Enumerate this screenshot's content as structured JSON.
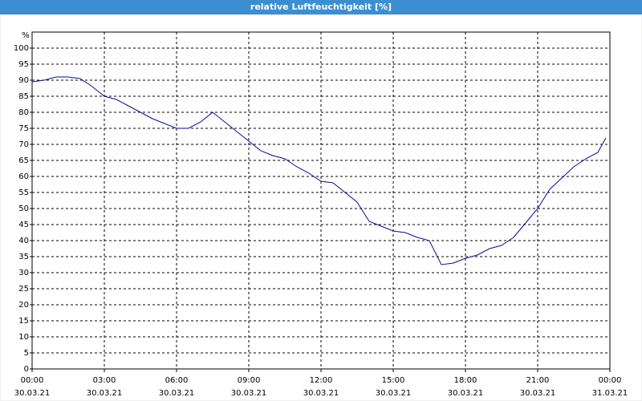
{
  "window_title": "relative Luftfeuchtigkeit [%]",
  "chart_data": {
    "type": "line",
    "y_unit": "%",
    "x": [
      0,
      0.5,
      1,
      1.5,
      2,
      2.5,
      3,
      3.5,
      4,
      4.5,
      5,
      5.5,
      6,
      6.5,
      7,
      7.5,
      8,
      8.5,
      9,
      9.5,
      10,
      10.5,
      11,
      11.5,
      12,
      12.5,
      13,
      13.5,
      14,
      14.5,
      15,
      15.5,
      16,
      16.5,
      17,
      17.5,
      18,
      18.5,
      19,
      19.5,
      20,
      20.5,
      21,
      21.5,
      22,
      22.5,
      23,
      23.5,
      23.83
    ],
    "series": [
      {
        "color": "#0a0a9c",
        "values": [
          89.5,
          90,
          91,
          91,
          90.5,
          88,
          85,
          84,
          82,
          80,
          78,
          76.5,
          75,
          75,
          77,
          80,
          77,
          74,
          71,
          68,
          66.5,
          65.5,
          63,
          61,
          58.5,
          58,
          55,
          52,
          46,
          44.5,
          43,
          42.5,
          41,
          40,
          32.5,
          33,
          34.5,
          35.5,
          37.5,
          38.5,
          41,
          45.5,
          50,
          56,
          59.5,
          63,
          65.5,
          67.5,
          72
        ]
      }
    ],
    "xlim": [
      0,
      24
    ],
    "xticks": [
      {
        "value": 0,
        "label": "00:00"
      },
      {
        "value": 3,
        "label": "03:00"
      },
      {
        "value": 6,
        "label": "06:00"
      },
      {
        "value": 9,
        "label": "09:00"
      },
      {
        "value": 12,
        "label": "12:00"
      },
      {
        "value": 15,
        "label": "15:00"
      },
      {
        "value": 18,
        "label": "18:00"
      },
      {
        "value": 21,
        "label": "21:00"
      },
      {
        "value": 24,
        "label": "00:00"
      }
    ],
    "xtick_dates": [
      "30.03.21",
      "30.03.21",
      "30.03.21",
      "30.03.21",
      "30.03.21",
      "30.03.21",
      "30.03.21",
      "30.03.21",
      "31.03.21"
    ],
    "ylim": [
      0,
      105
    ],
    "yticks": [
      0,
      5,
      10,
      15,
      20,
      25,
      30,
      35,
      40,
      45,
      50,
      55,
      60,
      65,
      70,
      75,
      80,
      85,
      90,
      95,
      100
    ],
    "grid": true
  }
}
